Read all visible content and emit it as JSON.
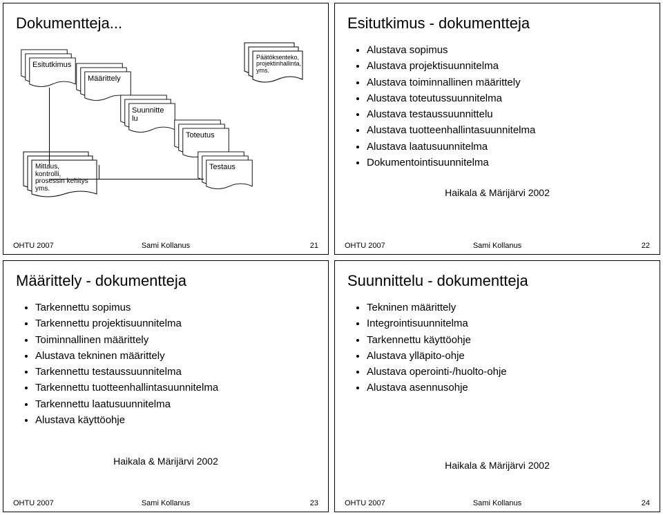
{
  "footer": {
    "left": "OHTU 2007",
    "center": "Sami Kollanus"
  },
  "source": "Haikala & Märijärvi 2002",
  "slide21": {
    "title": "Dokumentteja...",
    "page": "21",
    "boxes": {
      "esitutkimus": "Esitutkimus",
      "maarittely": "Määrittely",
      "suunnittelu": "Suunnitte\nlu",
      "toteutus": "Toteutus",
      "testaus": "Testaus",
      "paatoksenteko": "Päätöksenteko,\nprojektinhallinta,\nyms.",
      "mittaus": "Mittaus,\nkontrolli,\nprosessin kehitys\nyms."
    }
  },
  "slide22": {
    "title": "Esitutkimus - dokumentteja",
    "page": "22",
    "items": [
      "Alustava sopimus",
      "Alustava projektisuunnitelma",
      "Alustava toiminnallinen määrittely",
      "Alustava toteutussuunnitelma",
      "Alustava testaussuunnittelu",
      "Alustava tuotteenhallintasuunnitelma",
      "Alustava laatusuunnitelma",
      "Dokumentointisuunnitelma"
    ]
  },
  "slide23": {
    "title": "Määrittely - dokumentteja",
    "page": "23",
    "items": [
      "Tarkennettu sopimus",
      "Tarkennettu projektisuunnitelma",
      "Toiminnallinen määrittely",
      "Alustava tekninen määrittely",
      "Tarkennettu testaussuunnitelma",
      "Tarkennettu tuotteenhallintasuunnitelma",
      "Tarkennettu laatusuunnitelma",
      "Alustava käyttöohje"
    ]
  },
  "slide24": {
    "title": "Suunnittelu - dokumentteja",
    "page": "24",
    "items": [
      "Tekninen määrittely",
      "Integrointisuunnitelma",
      "Tarkennettu käyttöohje",
      "Alustava ylläpito-ohje",
      "Alustava operointi-/huolto-ohje",
      "Alustava asennusohje"
    ]
  }
}
